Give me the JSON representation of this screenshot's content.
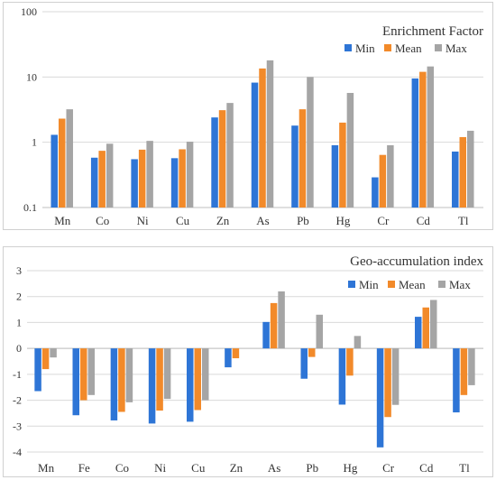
{
  "colors": {
    "Min": "#2e75d6",
    "Mean": "#f28a2a",
    "Max": "#a5a5a5",
    "grid": "#d9d9d9",
    "axis": "#bfbfbf"
  },
  "chart_data": [
    {
      "type": "bar",
      "title": "Enrichment Factor",
      "scale": "log",
      "ylim": [
        0.1,
        100
      ],
      "yticks": [
        "0.1",
        "1",
        "10",
        "100"
      ],
      "legend_position": "top-right",
      "categories": [
        "Mn",
        "Co",
        "Ni",
        "Cu",
        "Zn",
        "As",
        "Pb",
        "Hg",
        "Cr",
        "Cd",
        "Tl"
      ],
      "series": [
        {
          "name": "Min",
          "values": [
            1.3,
            0.58,
            0.55,
            0.57,
            2.4,
            8.2,
            1.8,
            0.9,
            0.29,
            9.5,
            0.72
          ]
        },
        {
          "name": "Mean",
          "values": [
            2.3,
            0.74,
            0.77,
            0.78,
            3.1,
            13.5,
            3.2,
            2.0,
            0.64,
            12.0,
            1.2
          ]
        },
        {
          "name": "Max",
          "values": [
            3.2,
            0.95,
            1.05,
            1.02,
            4.0,
            18.0,
            10.0,
            5.7,
            0.9,
            14.5,
            1.5
          ]
        }
      ]
    },
    {
      "type": "bar",
      "title": "Geo-accumulation index",
      "scale": "linear",
      "ylim": [
        -4,
        3
      ],
      "yticks": [
        "-4",
        "-3",
        "-2",
        "-1",
        "0",
        "1",
        "2",
        "3"
      ],
      "legend_position": "top-right",
      "categories": [
        "Mn",
        "Fe",
        "Co",
        "Ni",
        "Cu",
        "Zn",
        "As",
        "Pb",
        "Hg",
        "Cr",
        "Cd",
        "Tl"
      ],
      "series": [
        {
          "name": "Min",
          "values": [
            -1.65,
            -2.58,
            -2.78,
            -2.9,
            -2.83,
            -0.73,
            1.02,
            -1.17,
            -2.17,
            -3.82,
            1.22,
            -2.47
          ]
        },
        {
          "name": "Mean",
          "values": [
            -0.8,
            -2.0,
            -2.45,
            -2.4,
            -2.38,
            -0.38,
            1.75,
            -0.33,
            -1.05,
            -2.65,
            1.58,
            -1.8
          ]
        },
        {
          "name": "Max",
          "values": [
            -0.35,
            -1.8,
            -2.08,
            -1.95,
            -2.0,
            null,
            2.2,
            1.3,
            0.48,
            -2.18,
            1.87,
            -1.42
          ]
        }
      ]
    }
  ]
}
